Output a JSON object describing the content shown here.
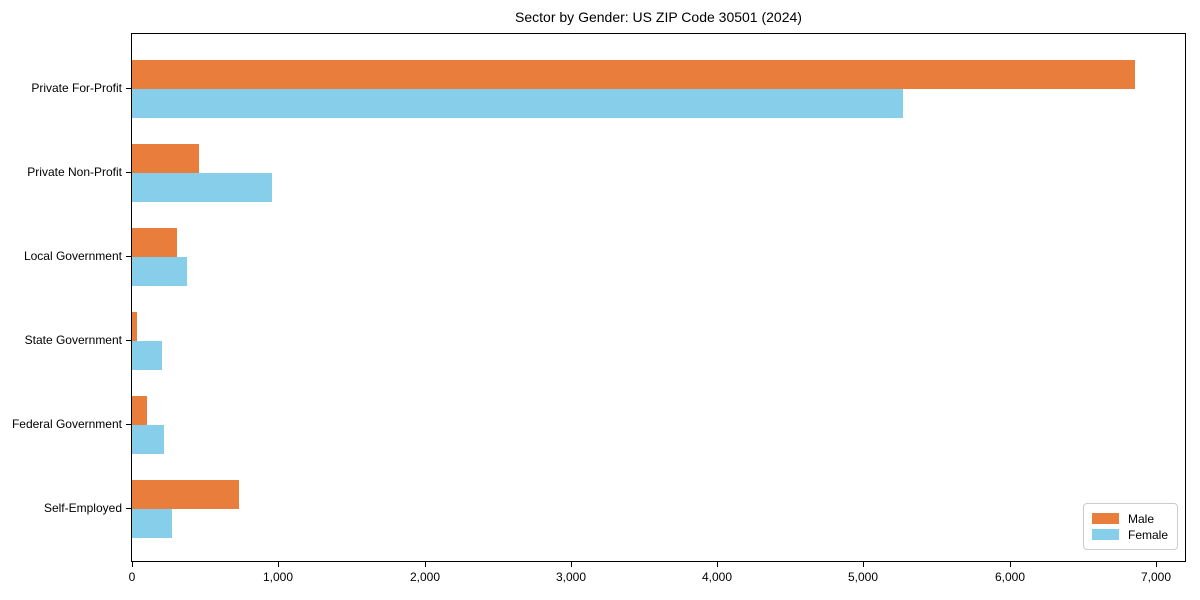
{
  "title": "Sector by Gender: US ZIP Code 30501 (2024)",
  "colors": {
    "male": "#e97d3b",
    "female": "#87ceeb",
    "axis": "#000000",
    "legend_border": "#cccccc",
    "background": "#ffffff"
  },
  "chart_data": {
    "type": "bar",
    "orientation": "horizontal",
    "title": "Sector by Gender: US ZIP Code 30501 (2024)",
    "categories": [
      "Private For-Profit",
      "Private Non-Profit",
      "Local Government",
      "State Government",
      "Federal Government",
      "Self-Employed"
    ],
    "series": [
      {
        "name": "Male",
        "color": "#e97d3b",
        "values": [
          6860,
          455,
          305,
          35,
          100,
          730
        ]
      },
      {
        "name": "Female",
        "color": "#87ceeb",
        "values": [
          5270,
          960,
          375,
          205,
          220,
          275
        ]
      }
    ],
    "xlabel": "",
    "ylabel": "",
    "xlim": [
      0,
      7200
    ],
    "xticks": [
      0,
      1000,
      2000,
      3000,
      4000,
      5000,
      6000,
      7000
    ],
    "xtick_labels": [
      "0",
      "1,000",
      "2,000",
      "3,000",
      "4,000",
      "5,000",
      "6,000",
      "7,000"
    ],
    "grid": false,
    "legend": {
      "position": "lower right",
      "entries": [
        "Male",
        "Female"
      ]
    }
  }
}
